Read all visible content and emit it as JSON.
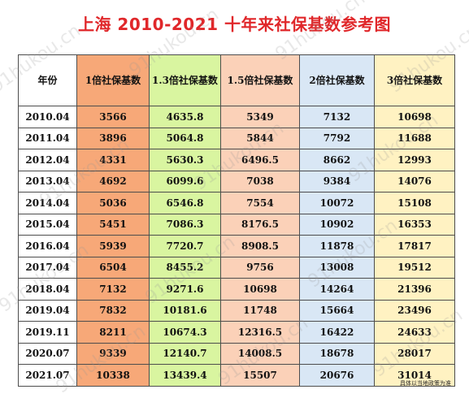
{
  "title": "上海 2010-2021 十年来社保基数参考图",
  "headers": [
    "年份",
    "1倍社保基数",
    "1.3倍社保基数",
    "1.5倍社保基数",
    "2倍社保基数",
    "3倍社保基数"
  ],
  "rows": [
    [
      "2010.04",
      "3566",
      "4635.8",
      "5349",
      "7132",
      "10698"
    ],
    [
      "2011.04",
      "3896",
      "5064.8",
      "5844",
      "7792",
      "11688"
    ],
    [
      "2012.04",
      "4331",
      "5630.3",
      "6496.5",
      "8662",
      "12993"
    ],
    [
      "2013.04",
      "4692",
      "6099.6",
      "7038",
      "9384",
      "14076"
    ],
    [
      "2014.04",
      "5036",
      "6546.8",
      "7554",
      "10072",
      "15108"
    ],
    [
      "2015.04",
      "5451",
      "7086.3",
      "8176.5",
      "10902",
      "16353"
    ],
    [
      "2016.04",
      "5939",
      "7720.7",
      "8908.5",
      "11878",
      "17817"
    ],
    [
      "2017.04",
      "6504",
      "8455.2",
      "9756",
      "13008",
      "19512"
    ],
    [
      "2018.04",
      "7132",
      "9271.6",
      "10698",
      "14264",
      "21396"
    ],
    [
      "2019.04",
      "7832",
      "10181.6",
      "11748",
      "15664",
      "23496"
    ],
    [
      "2019.11",
      "8211",
      "10674.3",
      "12316.5",
      "16422",
      "24633"
    ],
    [
      "2020.07",
      "9339",
      "12140.7",
      "14008.5",
      "18678",
      "28017"
    ],
    [
      "2021.07",
      "10338",
      "13439.4",
      "15507",
      "20676",
      "31014"
    ]
  ],
  "footnote": "具体以当地政策为准",
  "watermark": "91hukou.cn",
  "colors": {
    "title": "#e0272a",
    "col_1x": "#f7a878",
    "col_1_3x": "#d9f5a0",
    "col_1_5x": "#fbd1b8",
    "col_2x": "#d9e7f5",
    "col_3x": "#fff2c2"
  }
}
